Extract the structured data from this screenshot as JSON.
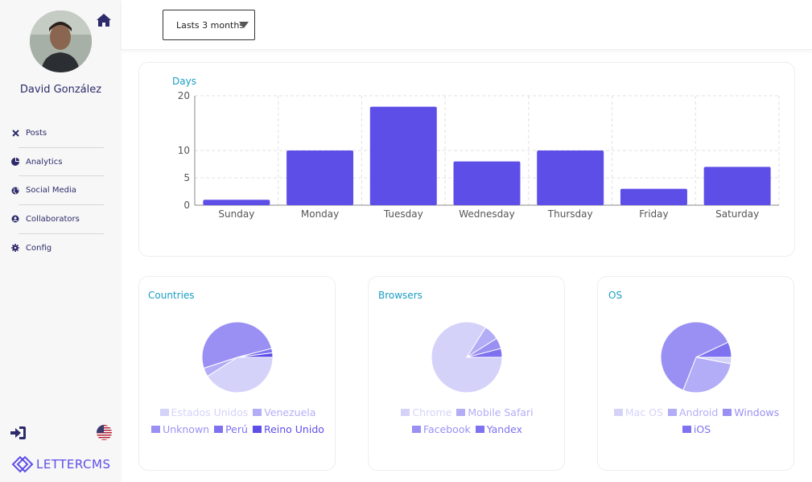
{
  "user": {
    "name": "David González"
  },
  "menu": {
    "items": [
      {
        "label": "Posts",
        "icon": "close-icon"
      },
      {
        "label": "Analytics",
        "icon": "pie-chart-icon"
      },
      {
        "label": "Social Media",
        "icon": "globe-icon"
      },
      {
        "label": "Collaborators",
        "icon": "user-circle-icon"
      },
      {
        "label": "Config",
        "icon": "gear-icon"
      }
    ]
  },
  "brand": {
    "logo_text": "LETTERCMS"
  },
  "filter": {
    "period": "Lasts 3 months"
  },
  "colors": {
    "accent": "#5e4ee8",
    "title": "#1a9ec3",
    "pie": [
      "#d5d2fa",
      "#b3acf7",
      "#9a90f3",
      "#7e72f0",
      "#5e4ee8"
    ]
  },
  "cards": {
    "days_title": "Days",
    "countries_title": "Countries",
    "browsers_title": "Browsers",
    "os_title": "OS"
  },
  "chart_data": [
    {
      "type": "bar",
      "title": "Days",
      "categories": [
        "Sunday",
        "Monday",
        "Tuesday",
        "Wednesday",
        "Thursday",
        "Friday",
        "Saturday"
      ],
      "values": [
        1,
        10,
        18,
        8,
        10,
        3,
        7
      ],
      "ylim": [
        0,
        20
      ],
      "yticks": [
        0,
        5,
        10,
        20
      ],
      "grid": true,
      "color": "#5e4ee8"
    },
    {
      "type": "pie",
      "title": "Countries",
      "labels": [
        "Estados Unidos",
        "Venezuela",
        "Unknown",
        "Perú",
        "Reino Unido"
      ],
      "values": [
        41,
        4,
        51,
        2,
        2
      ]
    },
    {
      "type": "pie",
      "title": "Browsers",
      "labels": [
        "Chrome",
        "Mobile Safari",
        "Facebook",
        "Yandex"
      ],
      "values": [
        84,
        7,
        5,
        4
      ]
    },
    {
      "type": "pie",
      "title": "OS",
      "labels": [
        "Mac OS",
        "Android",
        "Windows",
        "iOS"
      ],
      "values": [
        3,
        28,
        62,
        7
      ]
    }
  ]
}
